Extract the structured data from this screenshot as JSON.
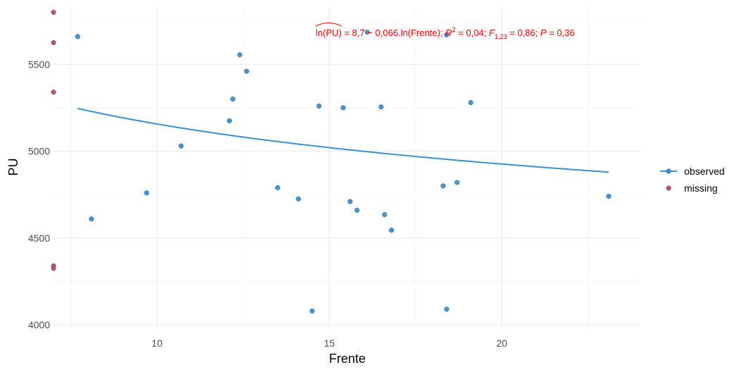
{
  "chart_data": {
    "type": "scatter",
    "xlabel": "Frente",
    "ylabel": "PU",
    "xlim": [
      7,
      24
    ],
    "ylim": [
      3980,
      5830
    ],
    "x_ticks": [
      10,
      15,
      20
    ],
    "y_ticks": [
      4000,
      4500,
      5000,
      5500
    ],
    "x_tick_labels": [
      "10",
      "15",
      "20"
    ],
    "y_tick_labels": [
      "4000",
      "4500",
      "5000",
      "5500"
    ],
    "grid": true,
    "legend_position": "right",
    "series": [
      {
        "name": "observed",
        "color": "#3a8fd0",
        "points": [
          {
            "x": 7.7,
            "y": 5660
          },
          {
            "x": 8.1,
            "y": 4610
          },
          {
            "x": 9.7,
            "y": 4760
          },
          {
            "x": 10.7,
            "y": 5030
          },
          {
            "x": 12.1,
            "y": 5175
          },
          {
            "x": 12.2,
            "y": 5300
          },
          {
            "x": 12.4,
            "y": 5555
          },
          {
            "x": 12.6,
            "y": 5460
          },
          {
            "x": 13.5,
            "y": 4790
          },
          {
            "x": 14.1,
            "y": 4725
          },
          {
            "x": 14.5,
            "y": 4080
          },
          {
            "x": 14.7,
            "y": 5260
          },
          {
            "x": 15.4,
            "y": 5250
          },
          {
            "x": 15.6,
            "y": 4710
          },
          {
            "x": 15.8,
            "y": 4660
          },
          {
            "x": 16.1,
            "y": 5685
          },
          {
            "x": 16.5,
            "y": 5255
          },
          {
            "x": 16.6,
            "y": 4635
          },
          {
            "x": 16.8,
            "y": 4545
          },
          {
            "x": 18.3,
            "y": 4800
          },
          {
            "x": 18.4,
            "y": 5670
          },
          {
            "x": 18.4,
            "y": 4090
          },
          {
            "x": 18.7,
            "y": 4820
          },
          {
            "x": 19.1,
            "y": 5280
          },
          {
            "x": 23.1,
            "y": 4740
          }
        ]
      },
      {
        "name": "missing",
        "color": "#c8456e",
        "points": [
          {
            "x": 7.0,
            "y": 5800
          },
          {
            "x": 7.0,
            "y": 5625
          },
          {
            "x": 7.0,
            "y": 5340
          },
          {
            "x": 7.0,
            "y": 4340
          },
          {
            "x": 7.0,
            "y": 4325
          }
        ]
      }
    ],
    "fit_line": {
      "color": "#3a8fd0",
      "x_range": [
        7.7,
        23.1
      ],
      "intercept": 8.7,
      "slope": -0.066
    },
    "annotation": {
      "color": "#ff0000",
      "hat_text": "ln(PU)",
      "eq_text": " = 8,7 − 0,066.ln(Frente); ",
      "r2_label": "R",
      "r2_sup": "2",
      "r2_value": " = 0,04; ",
      "f_label": "F",
      "f_sub": "1,23",
      "f_value": " = 0,86; ",
      "p_label": "P",
      "p_value": " = 0,36"
    }
  }
}
